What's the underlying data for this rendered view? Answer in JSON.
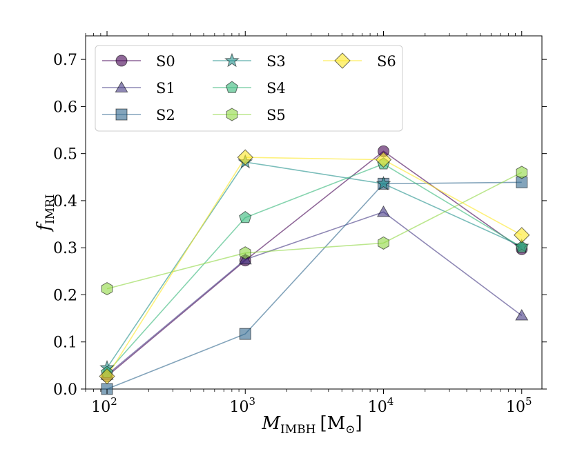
{
  "chart_data": {
    "type": "line",
    "xscale": "log",
    "x": [
      100,
      1000,
      10000,
      100000
    ],
    "xlim": [
      70,
      140000
    ],
    "ylim": [
      0.0,
      0.75
    ],
    "xticks": [
      100,
      1000,
      10000,
      100000
    ],
    "xtick_bases": [
      "10",
      "10",
      "10",
      "10"
    ],
    "xtick_exps": [
      "2",
      "3",
      "4",
      "5"
    ],
    "yticks": [
      0.0,
      0.1,
      0.2,
      0.3,
      0.4,
      0.5,
      0.6,
      0.7
    ],
    "ytick_labels": [
      "0.0",
      "0.1",
      "0.2",
      "0.3",
      "0.4",
      "0.5",
      "0.6",
      "0.7"
    ],
    "xlabel": {
      "main": "M",
      "sub": "IMBH",
      "unit": "[M",
      "unit_sub": "⊙",
      "unit_close": "]"
    },
    "ylabel": {
      "main": "f",
      "sub": "IMRI"
    },
    "grid": false,
    "legend_position": "top-left",
    "series": [
      {
        "name": "S0",
        "marker": "circle",
        "color": "#440154",
        "values": [
          0.027,
          0.273,
          0.505,
          0.297
        ]
      },
      {
        "name": "S1",
        "marker": "triangle",
        "color": "#443983",
        "values": [
          0.03,
          0.275,
          0.376,
          0.156
        ]
      },
      {
        "name": "S2",
        "marker": "square",
        "color": "#31688e",
        "values": [
          0.0,
          0.117,
          0.436,
          0.439
        ]
      },
      {
        "name": "S3",
        "marker": "star",
        "color": "#21918c",
        "values": [
          0.045,
          0.482,
          0.436,
          0.303
        ]
      },
      {
        "name": "S4",
        "marker": "pentagon",
        "color": "#35b779",
        "values": [
          0.035,
          0.364,
          0.478,
          0.301
        ]
      },
      {
        "name": "S5",
        "marker": "hexagon",
        "color": "#90d743",
        "values": [
          0.213,
          0.289,
          0.31,
          0.46
        ]
      },
      {
        "name": "S6",
        "marker": "diamond",
        "color": "#fde725",
        "values": [
          0.027,
          0.492,
          0.487,
          0.327
        ]
      }
    ]
  }
}
